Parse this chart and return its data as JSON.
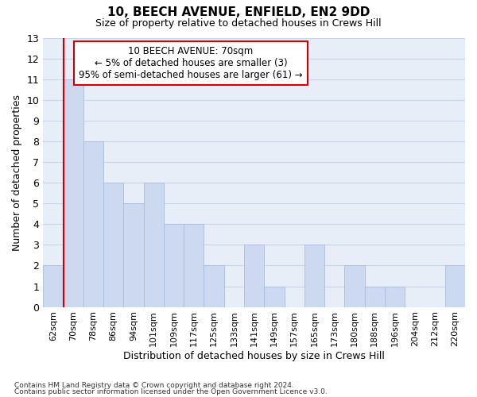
{
  "title1": "10, BEECH AVENUE, ENFIELD, EN2 9DD",
  "title2": "Size of property relative to detached houses in Crews Hill",
  "xlabel": "Distribution of detached houses by size in Crews Hill",
  "ylabel": "Number of detached properties",
  "categories": [
    "62sqm",
    "70sqm",
    "78sqm",
    "86sqm",
    "94sqm",
    "101sqm",
    "109sqm",
    "117sqm",
    "125sqm",
    "133sqm",
    "141sqm",
    "149sqm",
    "157sqm",
    "165sqm",
    "173sqm",
    "180sqm",
    "188sqm",
    "196sqm",
    "204sqm",
    "212sqm",
    "220sqm"
  ],
  "values": [
    2,
    11,
    8,
    6,
    5,
    6,
    4,
    4,
    2,
    0,
    3,
    1,
    0,
    3,
    0,
    2,
    1,
    1,
    0,
    0,
    2
  ],
  "bar_color": "#ccd9f0",
  "bar_edge_color": "#a8bedd",
  "highlight_bar_index": 1,
  "highlight_line_color": "#cc0000",
  "ylim": [
    0,
    13
  ],
  "yticks": [
    0,
    1,
    2,
    3,
    4,
    5,
    6,
    7,
    8,
    9,
    10,
    11,
    12,
    13
  ],
  "annotation_text": "10 BEECH AVENUE: 70sqm\n← 5% of detached houses are smaller (3)\n95% of semi-detached houses are larger (61) →",
  "annotation_box_color": "#ffffff",
  "annotation_box_edge": "#cc0000",
  "footer1": "Contains HM Land Registry data © Crown copyright and database right 2024.",
  "footer2": "Contains public sector information licensed under the Open Government Licence v3.0.",
  "grid_color": "#c8d4ea",
  "background_color": "#e8eef8"
}
